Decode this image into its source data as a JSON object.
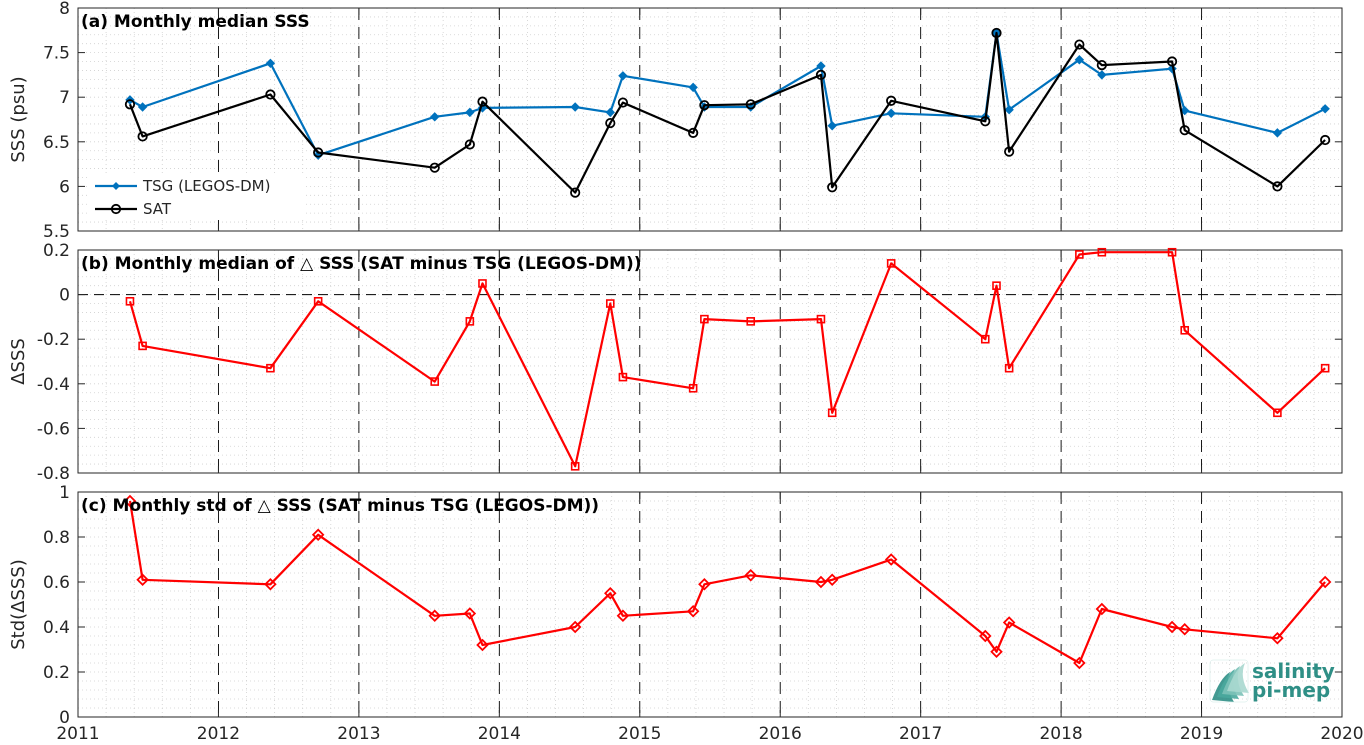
{
  "chart_data": [
    {
      "type": "line",
      "title": "(a) Monthly median SSS",
      "ylabel": "SSS (psu)",
      "xlim": [
        2011,
        2020
      ],
      "ylim": [
        5.5,
        8
      ],
      "xticks": [
        "2011",
        "2012",
        "2013",
        "2014",
        "2015",
        "2016",
        "2017",
        "2018",
        "2019",
        "2020"
      ],
      "yticks": [
        "5.5",
        "6",
        "6.5",
        "7",
        "7.5",
        "8"
      ],
      "grid": "on",
      "legend_position": "left",
      "series": [
        {
          "name": "TSG (LEGOS-DM)",
          "color": "#0072BD",
          "marker": "diamond",
          "x": [
            2011.37,
            2011.46,
            2012.37,
            2012.71,
            2013.54,
            2013.79,
            2013.88,
            2014.54,
            2014.79,
            2014.88,
            2015.38,
            2015.46,
            2015.79,
            2016.29,
            2016.37,
            2016.79,
            2017.46,
            2017.54,
            2017.63,
            2018.13,
            2018.29,
            2018.79,
            2018.88,
            2019.54,
            2019.88
          ],
          "y": [
            6.97,
            6.89,
            7.38,
            6.35,
            6.78,
            6.83,
            6.88,
            6.89,
            6.83,
            7.24,
            7.11,
            6.89,
            6.89,
            7.35,
            6.68,
            6.82,
            6.78,
            7.72,
            6.86,
            7.42,
            7.25,
            7.32,
            6.85,
            6.6,
            6.87
          ]
        },
        {
          "name": "SAT",
          "color": "#000000",
          "marker": "circle",
          "x": [
            2011.37,
            2011.46,
            2012.37,
            2012.71,
            2013.54,
            2013.79,
            2013.88,
            2014.54,
            2014.79,
            2014.88,
            2015.38,
            2015.46,
            2015.79,
            2016.29,
            2016.37,
            2016.79,
            2017.46,
            2017.54,
            2017.63,
            2018.13,
            2018.29,
            2018.79,
            2018.88,
            2019.54,
            2019.88
          ],
          "y": [
            6.92,
            6.56,
            7.03,
            6.38,
            6.21,
            6.47,
            6.95,
            5.93,
            6.71,
            6.94,
            6.6,
            6.91,
            6.92,
            7.25,
            5.99,
            6.96,
            6.73,
            7.72,
            6.39,
            7.59,
            7.36,
            7.4,
            6.63,
            6.0,
            6.52
          ]
        }
      ]
    },
    {
      "type": "line",
      "title": "(b) Monthly median of △ SSS (SAT minus TSG (LEGOS-DM))",
      "ylabel": "ΔSSS",
      "xlim": [
        2011,
        2020
      ],
      "ylim": [
        -0.8,
        0.2
      ],
      "yticks": [
        "-0.8",
        "-0.6",
        "-0.4",
        "-0.2",
        "0",
        "0.2"
      ],
      "zero_line": true,
      "grid": "on",
      "series": [
        {
          "color": "#FF0000",
          "marker": "square",
          "x": [
            2011.37,
            2011.46,
            2012.37,
            2012.71,
            2013.54,
            2013.79,
            2013.88,
            2014.54,
            2014.79,
            2014.88,
            2015.38,
            2015.46,
            2015.79,
            2016.29,
            2016.37,
            2016.79,
            2017.46,
            2017.54,
            2017.63,
            2018.13,
            2018.29,
            2018.79,
            2018.88,
            2019.54,
            2019.88
          ],
          "y": [
            -0.03,
            -0.23,
            -0.33,
            -0.03,
            -0.39,
            -0.12,
            0.05,
            -0.77,
            -0.04,
            -0.37,
            -0.42,
            -0.11,
            -0.12,
            -0.11,
            -0.53,
            0.14,
            -0.2,
            0.04,
            -0.33,
            0.18,
            0.19,
            0.19,
            -0.16,
            -0.53,
            -0.33
          ]
        }
      ]
    },
    {
      "type": "line",
      "title": "(c) Monthly std of △ SSS (SAT minus TSG (LEGOS-DM))",
      "ylabel": "Std(ΔSSS)",
      "xlim": [
        2011,
        2020
      ],
      "ylim": [
        0,
        1
      ],
      "yticks": [
        "0",
        "0.2",
        "0.4",
        "0.6",
        "0.8",
        "1"
      ],
      "grid": "on",
      "series": [
        {
          "color": "#FF0000",
          "marker": "diamond-open",
          "x": [
            2011.37,
            2011.46,
            2012.37,
            2012.71,
            2013.54,
            2013.79,
            2013.88,
            2014.54,
            2014.79,
            2014.88,
            2015.38,
            2015.46,
            2015.79,
            2016.29,
            2016.37,
            2016.79,
            2017.46,
            2017.54,
            2017.63,
            2018.13,
            2018.29,
            2018.79,
            2018.88,
            2019.54,
            2019.88
          ],
          "y": [
            0.96,
            0.61,
            0.59,
            0.81,
            0.45,
            0.46,
            0.32,
            0.4,
            0.55,
            0.45,
            0.47,
            0.59,
            0.63,
            0.6,
            0.61,
            0.7,
            0.36,
            0.29,
            0.42,
            0.24,
            0.48,
            0.4,
            0.39,
            0.35,
            0.6
          ]
        }
      ]
    }
  ],
  "logo": {
    "line1": "salinity",
    "line2": "pi-mep",
    "color": "#2f8f86"
  }
}
